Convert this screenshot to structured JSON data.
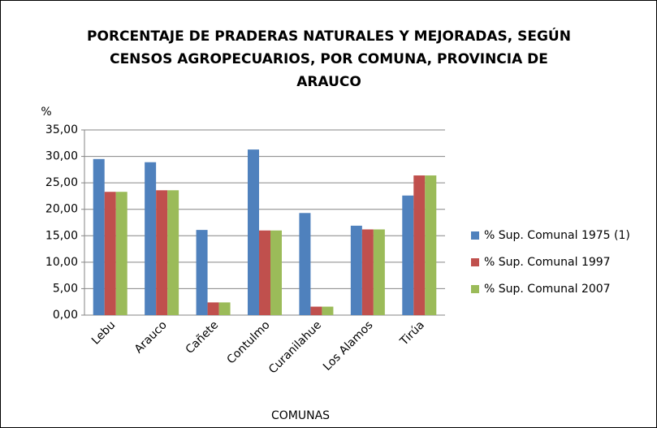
{
  "chart_data": {
    "type": "bar",
    "title": [
      "PORCENTAJE DE PRADERAS NATURALES Y MEJORADAS, SEGÚN",
      "CENSOS AGROPECUARIOS, POR COMUNA, PROVINCIA DE",
      "ARAUCO"
    ],
    "y_label": "%",
    "x_label": "COMUNAS",
    "categories": [
      "Lebu",
      "Arauco",
      "Cañete",
      "Contulmo",
      "Curanilahue",
      "Los Alamos",
      "Tirúa"
    ],
    "series": [
      {
        "name": "% Sup. Comunal 1975 (1)",
        "color": "#4f81bd",
        "values": [
          29.5,
          28.9,
          16.1,
          31.3,
          19.3,
          16.9,
          22.6
        ]
      },
      {
        "name": "% Sup. Comunal 1997",
        "color": "#c0504d",
        "values": [
          23.3,
          23.6,
          2.4,
          16.0,
          1.6,
          16.2,
          26.4
        ]
      },
      {
        "name": "% Sup. Comunal 2007",
        "color": "#9bbb59",
        "values": [
          23.3,
          23.6,
          2.4,
          16.0,
          1.6,
          16.2,
          26.4
        ]
      }
    ],
    "ylim": [
      0,
      35
    ],
    "yticks": [
      {
        "value": 0,
        "label": "0,00"
      },
      {
        "value": 5,
        "label": "5,00"
      },
      {
        "value": 10,
        "label": "10,00"
      },
      {
        "value": 15,
        "label": "15,00"
      },
      {
        "value": 20,
        "label": "20,00"
      },
      {
        "value": 25,
        "label": "25,00"
      },
      {
        "value": 30,
        "label": "30,00"
      },
      {
        "value": 35,
        "label": "35,00"
      }
    ],
    "grid": true,
    "legend": "right"
  }
}
